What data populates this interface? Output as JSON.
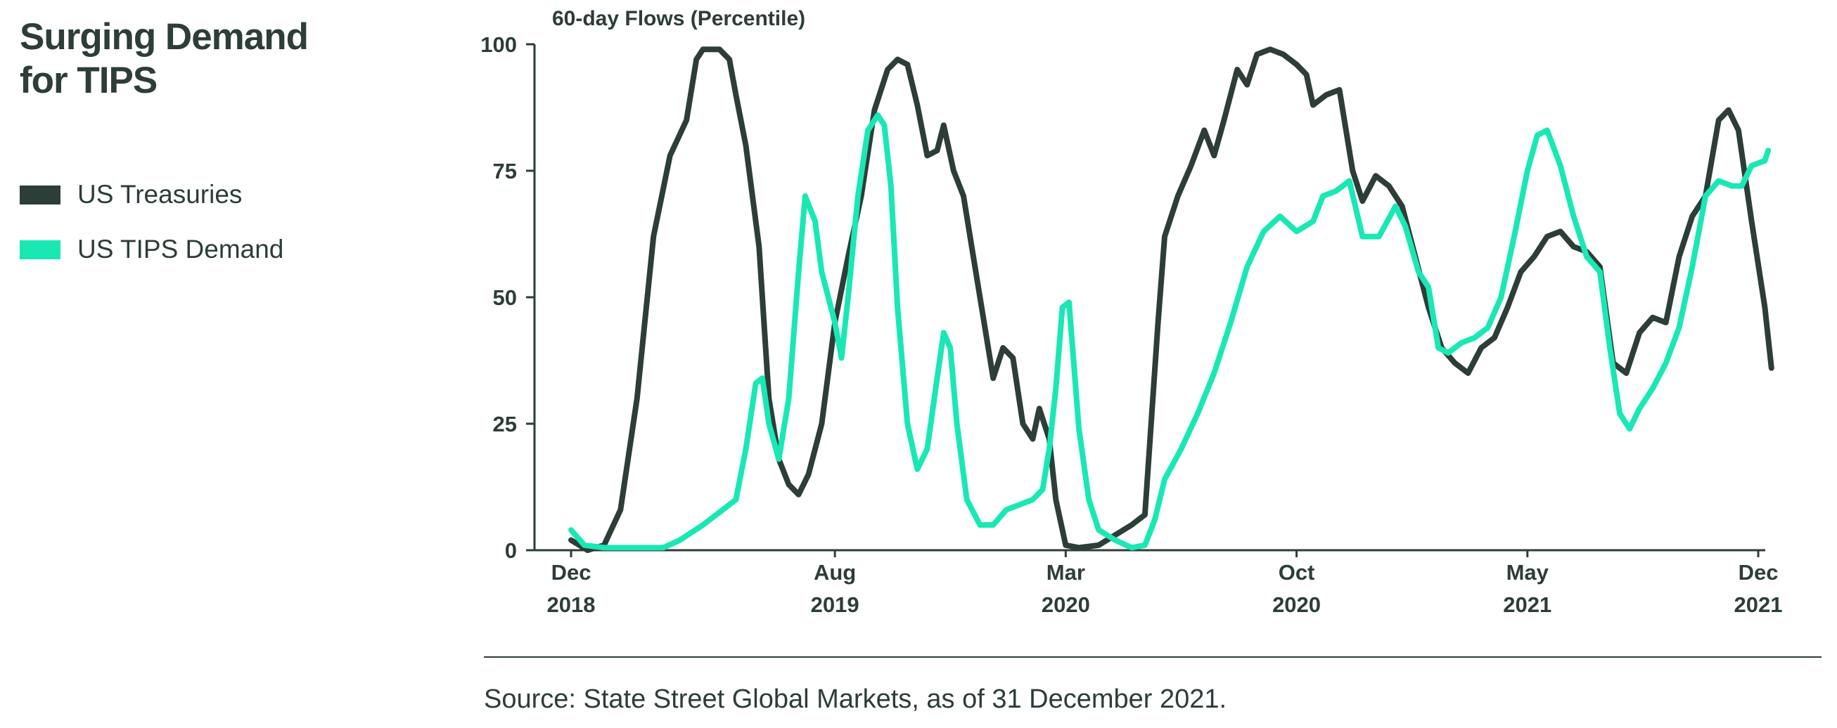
{
  "title_line1": "Surging Demand",
  "title_line2": "for TIPS",
  "source": "Source: State Street Global Markets, as of 31 December 2021.",
  "colors": {
    "treasuries": "#2d3d37",
    "tips": "#19e8b4",
    "axis": "#2d3d37"
  },
  "chart_data": {
    "type": "line",
    "title": "60-day Flows (Percentile)",
    "ylabel": "",
    "xlabel": "",
    "ylim": [
      0,
      100
    ],
    "yticks": [
      0,
      25,
      50,
      75,
      100
    ],
    "xlim": [
      0,
      36
    ],
    "xticks": [
      {
        "x": 0,
        "month": "Dec",
        "year": "2018"
      },
      {
        "x": 8,
        "month": "Aug",
        "year": "2019"
      },
      {
        "x": 15,
        "month": "Mar",
        "year": "2020"
      },
      {
        "x": 22,
        "month": "Oct",
        "year": "2020"
      },
      {
        "x": 29,
        "month": "May",
        "year": "2021"
      },
      {
        "x": 36,
        "month": "Dec",
        "year": "2021"
      }
    ],
    "series": [
      {
        "name": "US Treasuries",
        "color": "#2d3d37",
        "points": [
          [
            0,
            2
          ],
          [
            0.5,
            0
          ],
          [
            1,
            1
          ],
          [
            1.5,
            8
          ],
          [
            2,
            30
          ],
          [
            2.5,
            62
          ],
          [
            3,
            78
          ],
          [
            3.5,
            85
          ],
          [
            3.8,
            97
          ],
          [
            4,
            99
          ],
          [
            4.5,
            99
          ],
          [
            4.8,
            97
          ],
          [
            5,
            90
          ],
          [
            5.3,
            80
          ],
          [
            5.7,
            60
          ],
          [
            6,
            30
          ],
          [
            6.3,
            18
          ],
          [
            6.6,
            13
          ],
          [
            6.9,
            11
          ],
          [
            7.2,
            15
          ],
          [
            7.6,
            25
          ],
          [
            8,
            45
          ],
          [
            8.4,
            58
          ],
          [
            8.8,
            70
          ],
          [
            9.2,
            87
          ],
          [
            9.6,
            95
          ],
          [
            9.9,
            97
          ],
          [
            10.2,
            96
          ],
          [
            10.5,
            88
          ],
          [
            10.8,
            78
          ],
          [
            11.1,
            79
          ],
          [
            11.3,
            84
          ],
          [
            11.6,
            75
          ],
          [
            11.9,
            70
          ],
          [
            12.2,
            58
          ],
          [
            12.5,
            46
          ],
          [
            12.8,
            34
          ],
          [
            13.1,
            40
          ],
          [
            13.4,
            38
          ],
          [
            13.7,
            25
          ],
          [
            14,
            22
          ],
          [
            14.2,
            28
          ],
          [
            14.5,
            22
          ],
          [
            14.7,
            10
          ],
          [
            15,
            1
          ],
          [
            15.4,
            0.5
          ],
          [
            16,
            1
          ],
          [
            16.5,
            3
          ],
          [
            17,
            5
          ],
          [
            17.4,
            7
          ],
          [
            17.8,
            45
          ],
          [
            18,
            62
          ],
          [
            18.4,
            70
          ],
          [
            18.8,
            76
          ],
          [
            19.2,
            83
          ],
          [
            19.5,
            78
          ],
          [
            19.8,
            85
          ],
          [
            20.2,
            95
          ],
          [
            20.5,
            92
          ],
          [
            20.8,
            98
          ],
          [
            21.2,
            99
          ],
          [
            21.6,
            98
          ],
          [
            22,
            96
          ],
          [
            22.3,
            94
          ],
          [
            22.5,
            88
          ],
          [
            22.9,
            90
          ],
          [
            23.3,
            91
          ],
          [
            23.7,
            75
          ],
          [
            24,
            69
          ],
          [
            24.4,
            74
          ],
          [
            24.8,
            72
          ],
          [
            25.2,
            68
          ],
          [
            25.6,
            58
          ],
          [
            26,
            48
          ],
          [
            26.4,
            40
          ],
          [
            26.8,
            37
          ],
          [
            27.2,
            35
          ],
          [
            27.6,
            40
          ],
          [
            28,
            42
          ],
          [
            28.4,
            48
          ],
          [
            28.8,
            55
          ],
          [
            29.2,
            58
          ],
          [
            29.6,
            62
          ],
          [
            30,
            63
          ],
          [
            30.4,
            60
          ],
          [
            30.8,
            59
          ],
          [
            31.2,
            56
          ],
          [
            31.6,
            37
          ],
          [
            32,
            35
          ],
          [
            32.4,
            43
          ],
          [
            32.8,
            46
          ],
          [
            33.2,
            45
          ],
          [
            33.6,
            58
          ],
          [
            34,
            66
          ],
          [
            34.4,
            70
          ],
          [
            34.8,
            85
          ],
          [
            35.1,
            87
          ],
          [
            35.4,
            83
          ],
          [
            35.8,
            65
          ],
          [
            36.2,
            48
          ],
          [
            36.4,
            36
          ]
        ]
      },
      {
        "name": "US TIPS Demand",
        "color": "#19e8b4",
        "points": [
          [
            0,
            4
          ],
          [
            0.4,
            1
          ],
          [
            1,
            0.5
          ],
          [
            2,
            0.5
          ],
          [
            2.8,
            0.5
          ],
          [
            3.3,
            2
          ],
          [
            4,
            5
          ],
          [
            4.6,
            8
          ],
          [
            5,
            10
          ],
          [
            5.3,
            20
          ],
          [
            5.6,
            33
          ],
          [
            5.8,
            34
          ],
          [
            6,
            25
          ],
          [
            6.3,
            18
          ],
          [
            6.6,
            30
          ],
          [
            6.9,
            55
          ],
          [
            7.1,
            70
          ],
          [
            7.4,
            65
          ],
          [
            7.6,
            55
          ],
          [
            8,
            45
          ],
          [
            8.2,
            38
          ],
          [
            8.4,
            50
          ],
          [
            8.7,
            70
          ],
          [
            9,
            83
          ],
          [
            9.3,
            86
          ],
          [
            9.5,
            84
          ],
          [
            9.7,
            72
          ],
          [
            9.9,
            48
          ],
          [
            10.2,
            25
          ],
          [
            10.5,
            16
          ],
          [
            10.8,
            20
          ],
          [
            11.1,
            34
          ],
          [
            11.3,
            43
          ],
          [
            11.5,
            40
          ],
          [
            11.7,
            25
          ],
          [
            12,
            10
          ],
          [
            12.4,
            5
          ],
          [
            12.8,
            5
          ],
          [
            13.2,
            8
          ],
          [
            13.6,
            9
          ],
          [
            14,
            10
          ],
          [
            14.3,
            12
          ],
          [
            14.5,
            20
          ],
          [
            14.7,
            32
          ],
          [
            14.9,
            48
          ],
          [
            15.1,
            49
          ],
          [
            15.4,
            24
          ],
          [
            15.7,
            10
          ],
          [
            16,
            4
          ],
          [
            16.5,
            2
          ],
          [
            17,
            0.5
          ],
          [
            17.4,
            1
          ],
          [
            17.7,
            6
          ],
          [
            18,
            14
          ],
          [
            18.5,
            20
          ],
          [
            19,
            27
          ],
          [
            19.5,
            35
          ],
          [
            20,
            45
          ],
          [
            20.5,
            56
          ],
          [
            21,
            63
          ],
          [
            21.5,
            66
          ],
          [
            22,
            63
          ],
          [
            22.5,
            65
          ],
          [
            22.8,
            70
          ],
          [
            23.2,
            71
          ],
          [
            23.6,
            73
          ],
          [
            24,
            62
          ],
          [
            24.5,
            62
          ],
          [
            25,
            68
          ],
          [
            25.3,
            64
          ],
          [
            25.7,
            55
          ],
          [
            26,
            52
          ],
          [
            26.3,
            40
          ],
          [
            26.6,
            39
          ],
          [
            27,
            41
          ],
          [
            27.4,
            42
          ],
          [
            27.8,
            44
          ],
          [
            28.2,
            50
          ],
          [
            28.6,
            62
          ],
          [
            29,
            75
          ],
          [
            29.3,
            82
          ],
          [
            29.6,
            83
          ],
          [
            30,
            76
          ],
          [
            30.4,
            66
          ],
          [
            30.8,
            58
          ],
          [
            31.2,
            55
          ],
          [
            31.5,
            40
          ],
          [
            31.8,
            27
          ],
          [
            32.1,
            24
          ],
          [
            32.4,
            28
          ],
          [
            32.8,
            32
          ],
          [
            33.2,
            37
          ],
          [
            33.6,
            44
          ],
          [
            34,
            56
          ],
          [
            34.4,
            70
          ],
          [
            34.8,
            73
          ],
          [
            35.2,
            72
          ],
          [
            35.5,
            72
          ],
          [
            35.8,
            76
          ],
          [
            36.2,
            77
          ],
          [
            36.3,
            79
          ]
        ]
      }
    ]
  }
}
